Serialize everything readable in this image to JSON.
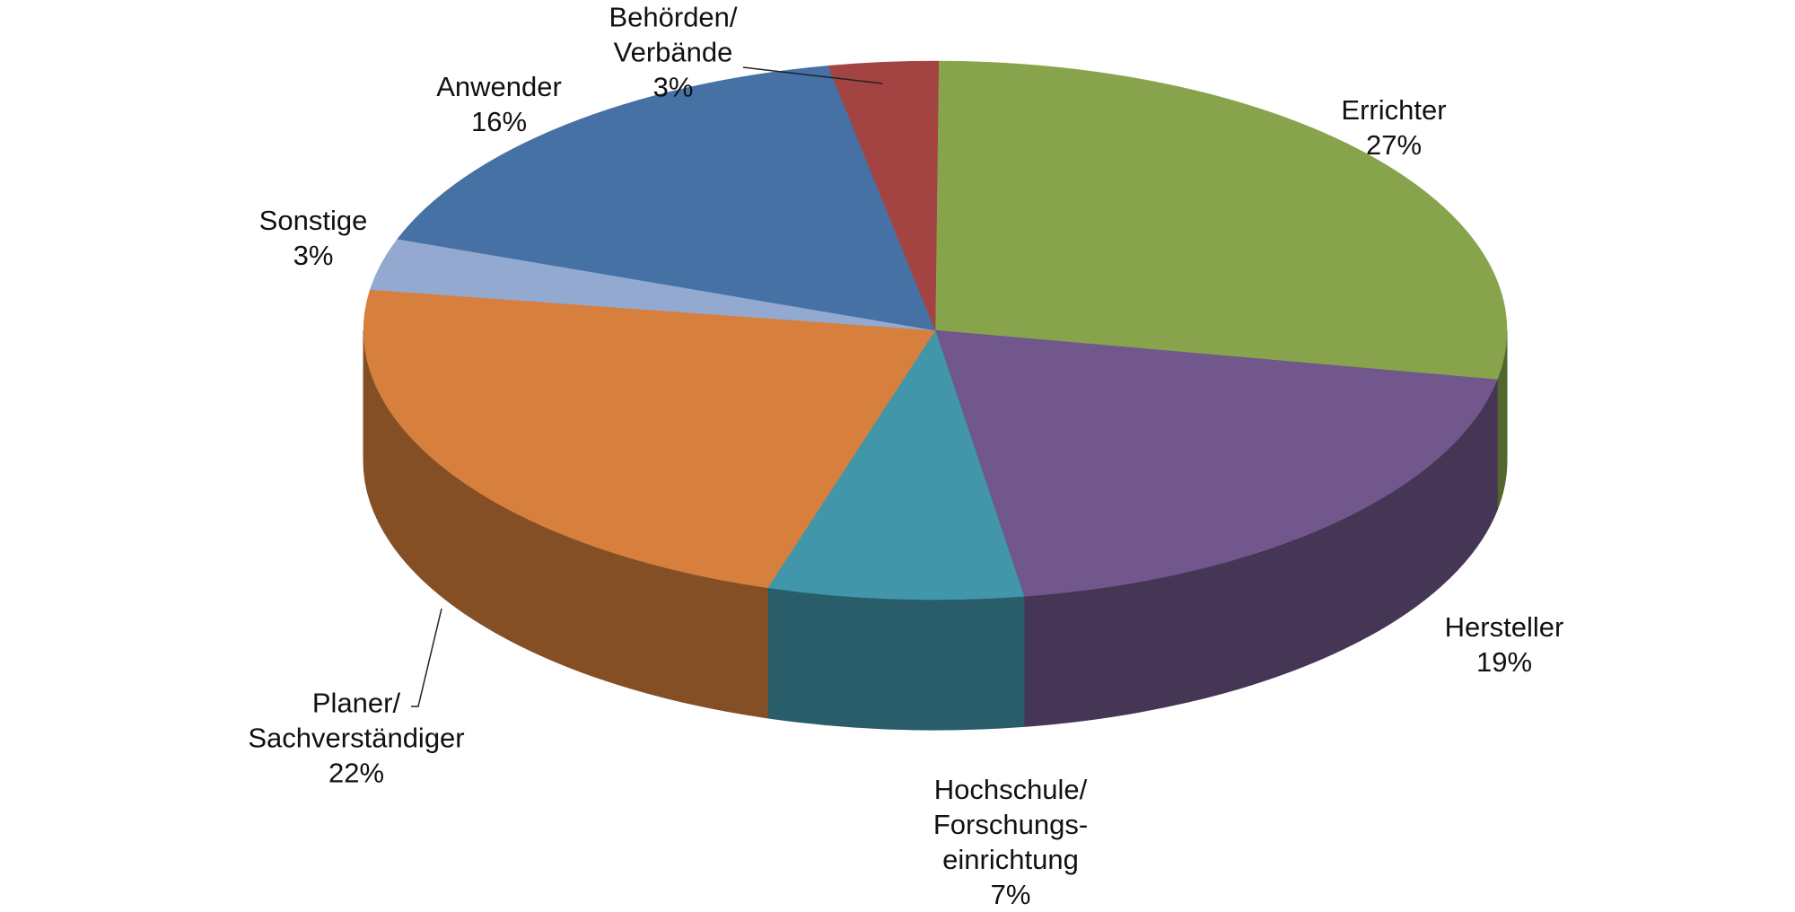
{
  "chart_data": {
    "type": "pie",
    "categories": [
      "Errichter",
      "Hersteller",
      "Hochschule/\nForschungs-\neinrichtung",
      "Planer/\nSachverständiger",
      "Sonstige",
      "Anwender",
      "Behörden/\nVerbände"
    ],
    "values": [
      27,
      19,
      7,
      22,
      3,
      16,
      3
    ],
    "value_labels": [
      "27%",
      "19%",
      "7%",
      "22%",
      "3%",
      "16%",
      "3%"
    ],
    "colors": [
      "#87a44d",
      "#71578b",
      "#4196a9",
      "#d77f3d",
      "#93a9d0",
      "#4571a5",
      "#a34443"
    ]
  }
}
